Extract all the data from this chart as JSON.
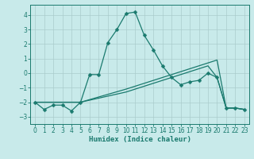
{
  "xlabel": "Humidex (Indice chaleur)",
  "ylabel": "",
  "bg_color": "#c8eaea",
  "grid_color": "#aacccc",
  "line_color": "#1a7a6e",
  "xlim": [
    -0.5,
    23.5
  ],
  "ylim": [
    -3.5,
    4.7
  ],
  "xticks": [
    0,
    1,
    2,
    3,
    4,
    5,
    6,
    7,
    8,
    9,
    10,
    11,
    12,
    13,
    14,
    15,
    16,
    17,
    18,
    19,
    20,
    21,
    22,
    23
  ],
  "yticks": [
    -3,
    -2,
    -1,
    0,
    1,
    2,
    3,
    4
  ],
  "line1_x": [
    0,
    1,
    2,
    3,
    4,
    5,
    6,
    7,
    8,
    9,
    10,
    11,
    12,
    13,
    14,
    15,
    16,
    17,
    18,
    19,
    20,
    21,
    22,
    23
  ],
  "line1_y": [
    -2.0,
    -2.5,
    -2.2,
    -2.2,
    -2.6,
    -2.0,
    -0.1,
    -0.1,
    2.1,
    3.0,
    4.1,
    4.2,
    2.6,
    1.6,
    0.5,
    -0.3,
    -0.8,
    -0.6,
    -0.5,
    0.0,
    -0.3,
    -2.4,
    -2.4,
    -2.5
  ],
  "line2_x": [
    0,
    5,
    10,
    11,
    12,
    13,
    14,
    15,
    16,
    17,
    18,
    19,
    20,
    21,
    22,
    23
  ],
  "line2_y": [
    -2.0,
    -2.0,
    -1.1,
    -0.9,
    -0.7,
    -0.5,
    -0.3,
    -0.1,
    0.1,
    0.3,
    0.5,
    0.7,
    0.9,
    -2.4,
    -2.4,
    -2.5
  ],
  "line3_x": [
    0,
    5,
    10,
    11,
    12,
    13,
    14,
    15,
    16,
    17,
    18,
    19,
    20,
    21,
    22,
    23
  ],
  "line3_y": [
    -2.0,
    -2.0,
    -1.3,
    -1.1,
    -0.9,
    -0.7,
    -0.5,
    -0.3,
    -0.1,
    0.1,
    0.3,
    0.5,
    -0.3,
    -2.4,
    -2.4,
    -2.5
  ],
  "tick_fontsize": 5.5,
  "xlabel_fontsize": 6.5,
  "lw": 0.9,
  "ms": 2.5
}
